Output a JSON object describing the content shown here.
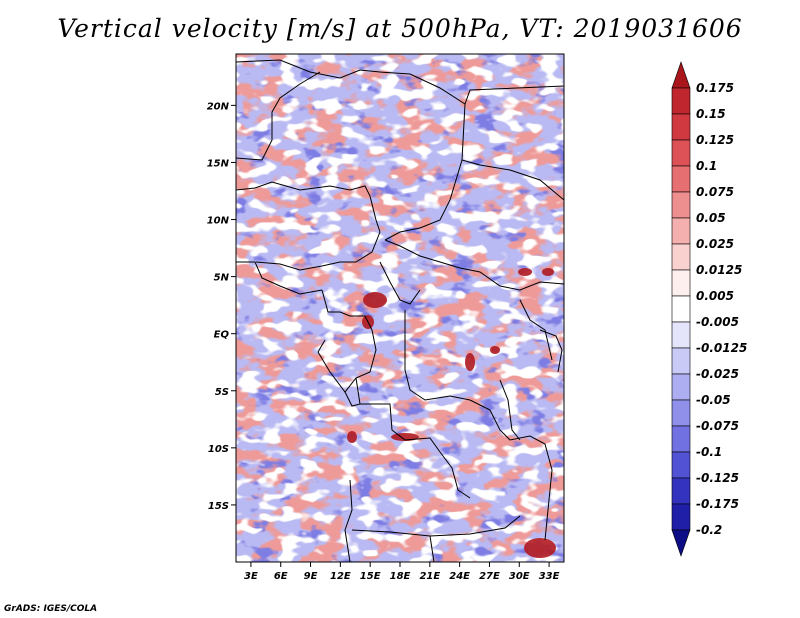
{
  "title": "Vertical velocity [m/s] at 500hPa, VT: 2019031606",
  "credit": "GrADS: IGES/COLA",
  "chart_data": {
    "type": "heatmap",
    "title": "Vertical velocity [m/s] at 500hPa, VT: 2019031606",
    "x_ticks": [
      "3E",
      "6E",
      "9E",
      "12E",
      "15E",
      "18E",
      "21E",
      "24E",
      "27E",
      "30E",
      "33E"
    ],
    "y_ticks": [
      "20N",
      "15N",
      "10N",
      "5N",
      "EQ",
      "5S",
      "10S",
      "15S"
    ],
    "xlim": [
      1.5,
      34.5
    ],
    "ylim": [
      -20,
      24.5
    ],
    "colorbar": {
      "levels": [
        "0.175",
        "0.15",
        "0.125",
        "0.1",
        "0.075",
        "0.05",
        "0.025",
        "0.0125",
        "0.005",
        "-0.005",
        "-0.0125",
        "-0.025",
        "-0.05",
        "-0.075",
        "-0.1",
        "-0.125",
        "-0.175",
        "-0.2"
      ],
      "colors": [
        "#a8161c",
        "#c0262d",
        "#d0393f",
        "#dc5257",
        "#e56f71",
        "#ee8f8f",
        "#f4b0ae",
        "#f9d2d0",
        "#fdefee",
        "#ffffff",
        "#e4e4fb",
        "#cacaf7",
        "#adadf1",
        "#9090ea",
        "#7171e1",
        "#5252d5",
        "#3333c0",
        "#1f1fa8",
        "#0d0d85"
      ]
    }
  }
}
